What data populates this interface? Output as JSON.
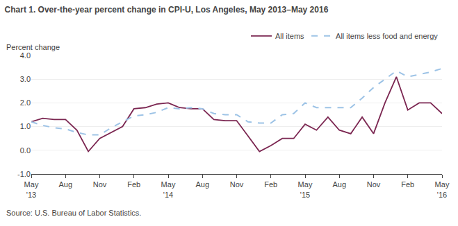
{
  "chart_data": {
    "type": "line",
    "title": "Chart 1. Over-the-year percent change in CPI-U, Los Angeles, May 2013–May 2016",
    "ylabel": "Percent change",
    "annotations": [
      "Source: U.S. Bureau of Labor Statistics."
    ],
    "categories": [
      "May\n'13",
      null,
      null,
      "Aug",
      null,
      null,
      "Nov",
      null,
      null,
      "Feb",
      null,
      null,
      "May\n'14",
      null,
      null,
      "Aug",
      null,
      null,
      "Nov",
      null,
      null,
      "Feb",
      null,
      null,
      "May\n'15",
      null,
      null,
      "Aug",
      null,
      null,
      "Nov",
      null,
      null,
      "Feb",
      null,
      null,
      "May\n'16"
    ],
    "series": [
      {
        "name": "All items",
        "color": "#7B2651",
        "line_style": "solid",
        "values": [
          1.2,
          1.35,
          1.3,
          1.3,
          0.85,
          -0.05,
          0.5,
          0.75,
          1.0,
          1.75,
          1.8,
          1.95,
          2.0,
          1.8,
          1.75,
          1.75,
          1.3,
          1.25,
          1.25,
          0.6,
          -0.05,
          0.2,
          0.5,
          0.5,
          1.1,
          0.85,
          1.4,
          0.85,
          0.7,
          1.4,
          0.7,
          2.0,
          3.1,
          1.7,
          2.0,
          2.0,
          1.55
        ]
      },
      {
        "name": "All items less food and energy",
        "color": "#9DC3E6",
        "line_style": "dashed",
        "values": [
          1.2,
          1.05,
          0.95,
          0.9,
          0.75,
          0.65,
          0.65,
          0.95,
          1.2,
          1.45,
          1.5,
          1.6,
          1.8,
          1.75,
          1.8,
          1.75,
          1.55,
          1.5,
          1.5,
          1.2,
          1.15,
          1.15,
          1.5,
          1.55,
          2.0,
          1.8,
          1.8,
          1.8,
          1.8,
          2.2,
          2.65,
          3.0,
          3.35,
          3.1,
          3.2,
          3.3,
          3.45
        ]
      }
    ],
    "ylim": [
      -1.0,
      4.0
    ],
    "yticks": [
      {
        "value": -1.0,
        "label": "-1.0"
      },
      {
        "value": 0.0,
        "label": "0.0"
      },
      {
        "value": 1.0,
        "label": "1.0"
      },
      {
        "value": 2.0,
        "label": "2.0"
      },
      {
        "value": 3.0,
        "label": "3.0"
      },
      {
        "value": 4.0,
        "label": "4.0"
      }
    ],
    "grid": true,
    "legend": "top"
  }
}
